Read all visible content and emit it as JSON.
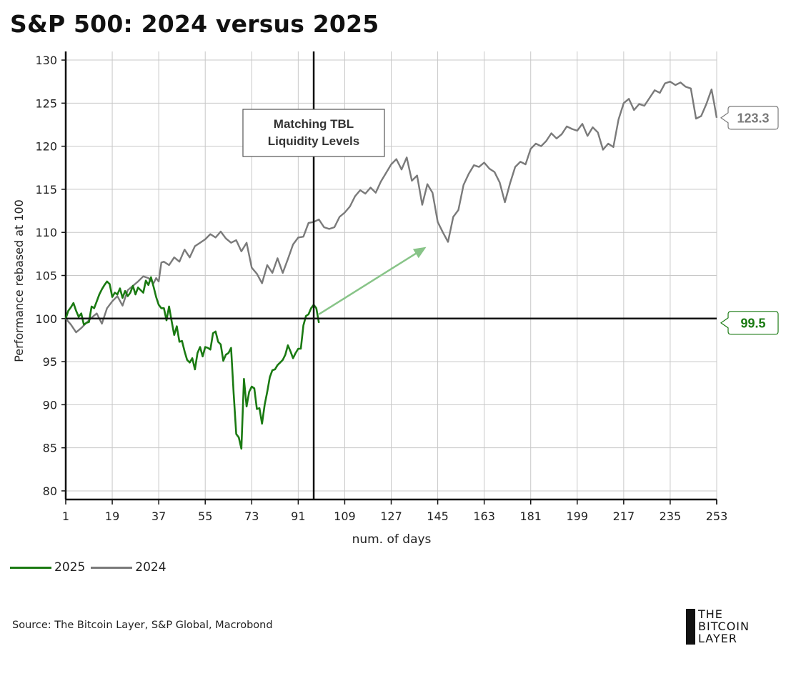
{
  "title": "S&P 500: 2024 versus 2025",
  "source": "Source: The Bitcoin Layer, S&P Global, Macrobond",
  "logo": {
    "line1": "THE",
    "line2": "BITCOIN",
    "line3": "LAYER"
  },
  "colors": {
    "s2025": "#1a7a12",
    "s2024": "#7a7a7a",
    "arrow": "#88c488",
    "axis": "#111111",
    "grid": "#c8c8c8"
  },
  "chart_data": {
    "type": "line",
    "title": "S&P 500: 2024 versus 2025",
    "xlabel": "num. of days",
    "ylabel": "Performance rebased at 100",
    "xlim": [
      1,
      253
    ],
    "ylim": [
      79,
      131
    ],
    "xticks": [
      1,
      19,
      37,
      55,
      73,
      91,
      109,
      127,
      145,
      163,
      181,
      199,
      217,
      235,
      253
    ],
    "yticks": [
      80,
      85,
      90,
      95,
      100,
      105,
      110,
      115,
      120,
      125,
      130
    ],
    "grid": true,
    "legend": {
      "position": "bottom-left"
    },
    "annotations": {
      "box_text_line1": "Matching TBL",
      "box_text_line2": "Liquidity Levels",
      "vline_x": 97,
      "hline_y": 100,
      "arrow_from": [
        99,
        100.5
      ],
      "arrow_to": [
        140,
        108.2
      ],
      "label_2024": "123.3",
      "label_2025": "99.5"
    },
    "series": [
      {
        "name": "2025",
        "color": "#1a7a12",
        "points": [
          [
            1,
            100.0
          ],
          [
            2,
            100.9
          ],
          [
            3,
            101.3
          ],
          [
            4,
            101.8
          ],
          [
            5,
            100.9
          ],
          [
            6,
            100.2
          ],
          [
            7,
            100.6
          ],
          [
            8,
            99.3
          ],
          [
            9,
            99.5
          ],
          [
            10,
            99.6
          ],
          [
            11,
            101.4
          ],
          [
            12,
            101.2
          ],
          [
            13,
            102.0
          ],
          [
            14,
            102.8
          ],
          [
            15,
            103.4
          ],
          [
            16,
            103.9
          ],
          [
            17,
            104.3
          ],
          [
            18,
            104.0
          ],
          [
            19,
            102.5
          ],
          [
            20,
            103.0
          ],
          [
            21,
            102.8
          ],
          [
            22,
            103.5
          ],
          [
            23,
            102.4
          ],
          [
            24,
            103.2
          ],
          [
            25,
            102.6
          ],
          [
            26,
            103.0
          ],
          [
            27,
            103.8
          ],
          [
            28,
            102.8
          ],
          [
            29,
            103.6
          ],
          [
            30,
            103.3
          ],
          [
            31,
            103.0
          ],
          [
            32,
            104.4
          ],
          [
            33,
            103.9
          ],
          [
            34,
            104.8
          ],
          [
            35,
            103.7
          ],
          [
            36,
            102.5
          ],
          [
            37,
            101.6
          ],
          [
            38,
            101.2
          ],
          [
            39,
            101.2
          ],
          [
            40,
            99.8
          ],
          [
            41,
            101.4
          ],
          [
            42,
            99.7
          ],
          [
            43,
            98.1
          ],
          [
            44,
            99.1
          ],
          [
            45,
            97.3
          ],
          [
            46,
            97.4
          ],
          [
            47,
            96.2
          ],
          [
            48,
            95.2
          ],
          [
            49,
            94.9
          ],
          [
            50,
            95.4
          ],
          [
            51,
            94.1
          ],
          [
            52,
            96.0
          ],
          [
            53,
            96.7
          ],
          [
            54,
            95.6
          ],
          [
            55,
            96.7
          ],
          [
            56,
            96.6
          ],
          [
            57,
            96.4
          ],
          [
            58,
            98.3
          ],
          [
            59,
            98.5
          ],
          [
            60,
            97.3
          ],
          [
            61,
            97.0
          ],
          [
            62,
            95.1
          ],
          [
            63,
            95.8
          ],
          [
            64,
            96.0
          ],
          [
            65,
            96.6
          ],
          [
            66,
            91.3
          ],
          [
            67,
            86.6
          ],
          [
            68,
            86.2
          ],
          [
            69,
            84.9
          ],
          [
            70,
            93.0
          ],
          [
            71,
            89.8
          ],
          [
            72,
            91.5
          ],
          [
            73,
            92.1
          ],
          [
            74,
            91.9
          ],
          [
            75,
            89.5
          ],
          [
            76,
            89.6
          ],
          [
            77,
            87.8
          ],
          [
            78,
            90.0
          ],
          [
            79,
            91.5
          ],
          [
            80,
            93.2
          ],
          [
            81,
            94.0
          ],
          [
            82,
            94.1
          ],
          [
            83,
            94.6
          ],
          [
            84,
            94.9
          ],
          [
            85,
            95.2
          ],
          [
            86,
            95.8
          ],
          [
            87,
            96.9
          ],
          [
            88,
            96.2
          ],
          [
            89,
            95.4
          ],
          [
            90,
            96.0
          ],
          [
            91,
            96.5
          ],
          [
            92,
            96.5
          ],
          [
            93,
            99.2
          ],
          [
            94,
            100.3
          ],
          [
            95,
            100.5
          ],
          [
            96,
            101.2
          ],
          [
            97,
            101.6
          ],
          [
            98,
            101.2
          ],
          [
            99,
            99.5
          ]
        ]
      },
      {
        "name": "2024",
        "color": "#7a7a7a",
        "points": [
          [
            1,
            100.0
          ],
          [
            3,
            99.3
          ],
          [
            5,
            98.4
          ],
          [
            7,
            98.9
          ],
          [
            9,
            99.5
          ],
          [
            11,
            100.1
          ],
          [
            13,
            100.6
          ],
          [
            15,
            99.4
          ],
          [
            17,
            101.2
          ],
          [
            19,
            102.0
          ],
          [
            21,
            102.6
          ],
          [
            23,
            101.5
          ],
          [
            25,
            103.3
          ],
          [
            27,
            103.8
          ],
          [
            29,
            104.3
          ],
          [
            31,
            104.9
          ],
          [
            33,
            104.7
          ],
          [
            35,
            104.1
          ],
          [
            36,
            104.7
          ],
          [
            37,
            104.3
          ],
          [
            38,
            106.5
          ],
          [
            39,
            106.6
          ],
          [
            41,
            106.2
          ],
          [
            43,
            107.1
          ],
          [
            45,
            106.6
          ],
          [
            47,
            108.0
          ],
          [
            49,
            107.1
          ],
          [
            51,
            108.4
          ],
          [
            53,
            108.8
          ],
          [
            55,
            109.2
          ],
          [
            57,
            109.8
          ],
          [
            59,
            109.4
          ],
          [
            61,
            110.1
          ],
          [
            63,
            109.3
          ],
          [
            65,
            108.8
          ],
          [
            67,
            109.1
          ],
          [
            69,
            107.8
          ],
          [
            71,
            108.8
          ],
          [
            73,
            105.9
          ],
          [
            75,
            105.2
          ],
          [
            77,
            104.1
          ],
          [
            79,
            106.2
          ],
          [
            81,
            105.3
          ],
          [
            83,
            107.0
          ],
          [
            85,
            105.3
          ],
          [
            87,
            106.9
          ],
          [
            89,
            108.6
          ],
          [
            91,
            109.4
          ],
          [
            93,
            109.5
          ],
          [
            95,
            111.1
          ],
          [
            97,
            111.2
          ],
          [
            99,
            111.5
          ],
          [
            101,
            110.6
          ],
          [
            103,
            110.4
          ],
          [
            105,
            110.6
          ],
          [
            107,
            111.8
          ],
          [
            109,
            112.3
          ],
          [
            111,
            113.0
          ],
          [
            113,
            114.2
          ],
          [
            115,
            114.9
          ],
          [
            117,
            114.5
          ],
          [
            119,
            115.2
          ],
          [
            121,
            114.6
          ],
          [
            123,
            115.9
          ],
          [
            125,
            116.9
          ],
          [
            127,
            117.9
          ],
          [
            129,
            118.5
          ],
          [
            131,
            117.3
          ],
          [
            133,
            118.7
          ],
          [
            135,
            116.0
          ],
          [
            137,
            116.6
          ],
          [
            139,
            113.2
          ],
          [
            141,
            115.6
          ],
          [
            143,
            114.6
          ],
          [
            145,
            111.2
          ],
          [
            147,
            110.0
          ],
          [
            149,
            108.9
          ],
          [
            151,
            111.8
          ],
          [
            153,
            112.6
          ],
          [
            155,
            115.5
          ],
          [
            157,
            116.8
          ],
          [
            159,
            117.8
          ],
          [
            161,
            117.6
          ],
          [
            163,
            118.1
          ],
          [
            165,
            117.4
          ],
          [
            167,
            117.0
          ],
          [
            169,
            115.8
          ],
          [
            171,
            113.5
          ],
          [
            173,
            115.7
          ],
          [
            175,
            117.6
          ],
          [
            177,
            118.2
          ],
          [
            179,
            117.9
          ],
          [
            181,
            119.7
          ],
          [
            183,
            120.3
          ],
          [
            185,
            120.0
          ],
          [
            187,
            120.6
          ],
          [
            189,
            121.5
          ],
          [
            191,
            120.9
          ],
          [
            193,
            121.4
          ],
          [
            195,
            122.3
          ],
          [
            197,
            122.0
          ],
          [
            199,
            121.8
          ],
          [
            201,
            122.6
          ],
          [
            203,
            121.2
          ],
          [
            205,
            122.2
          ],
          [
            207,
            121.6
          ],
          [
            209,
            119.6
          ],
          [
            211,
            120.3
          ],
          [
            213,
            119.9
          ],
          [
            215,
            123.1
          ],
          [
            217,
            125.0
          ],
          [
            219,
            125.5
          ],
          [
            221,
            124.2
          ],
          [
            223,
            124.9
          ],
          [
            225,
            124.7
          ],
          [
            227,
            125.6
          ],
          [
            229,
            126.5
          ],
          [
            231,
            126.2
          ],
          [
            233,
            127.3
          ],
          [
            235,
            127.5
          ],
          [
            237,
            127.1
          ],
          [
            239,
            127.4
          ],
          [
            241,
            126.9
          ],
          [
            243,
            126.7
          ],
          [
            245,
            123.2
          ],
          [
            247,
            123.5
          ],
          [
            249,
            124.9
          ],
          [
            251,
            126.6
          ],
          [
            252,
            125.0
          ],
          [
            253,
            123.3
          ]
        ]
      }
    ]
  }
}
